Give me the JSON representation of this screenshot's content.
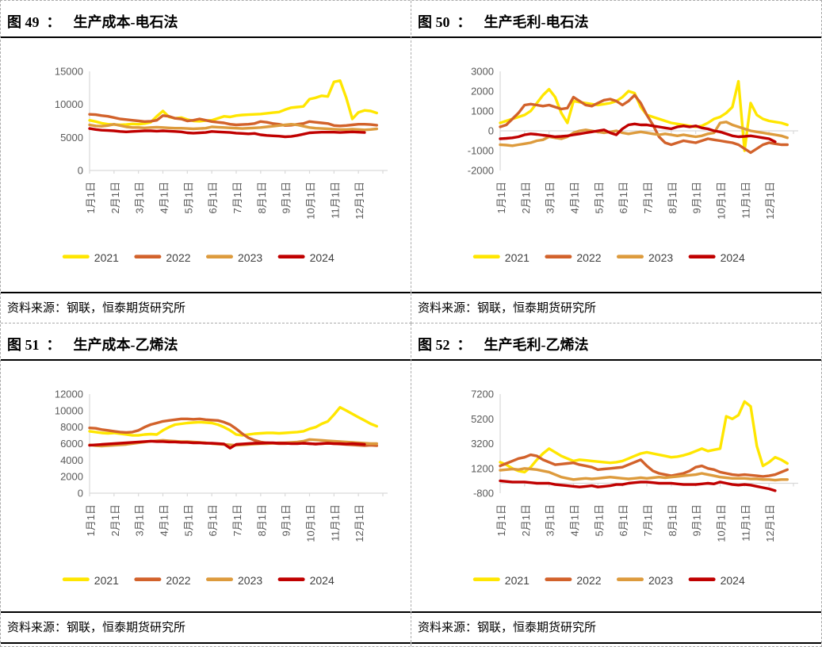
{
  "chart_data": [
    {
      "type": "line",
      "figure_label": "图 49",
      "colon": "：",
      "title": "生产成本-电石法",
      "source": "资料来源：钢联，恒泰期货研究所",
      "ylim": [
        0,
        15000
      ],
      "y_ticks": [
        0,
        5000,
        10000,
        15000
      ],
      "x_labels": [
        "1月1日",
        "2月1日",
        "3月1日",
        "4月1日",
        "5月1日",
        "6月1日",
        "7月1日",
        "8月1日",
        "9月1日",
        "10月1日",
        "11月1日",
        "12月1日"
      ],
      "grid": false,
      "legend_position": "bottom",
      "axis_color": "#D9D9D9",
      "points_per_year": 48,
      "series": [
        {
          "name": "2021",
          "color": "#FFE600",
          "values": [
            7600,
            7400,
            7150,
            7000,
            6950,
            6900,
            6950,
            7050,
            7000,
            7100,
            7300,
            8200,
            9000,
            8100,
            7900,
            8000,
            7700,
            7500,
            7450,
            7550,
            7600,
            7900,
            8200,
            8100,
            8300,
            8400,
            8450,
            8500,
            8550,
            8650,
            8750,
            8850,
            9200,
            9500,
            9600,
            9700,
            10800,
            11000,
            11300,
            11200,
            13400,
            13600,
            11000,
            7800,
            8800,
            9100,
            9000,
            8700
          ]
        },
        {
          "name": "2022",
          "color": "#D2622B",
          "values": [
            8500,
            8450,
            8300,
            8200,
            8000,
            7800,
            7700,
            7600,
            7500,
            7400,
            7450,
            7600,
            8300,
            8200,
            7900,
            7800,
            7500,
            7600,
            7800,
            7600,
            7400,
            7300,
            7200,
            7000,
            6900,
            6950,
            7000,
            7100,
            7400,
            7300,
            7100,
            7000,
            6800,
            6850,
            7000,
            7100,
            7400,
            7300,
            7200,
            7100,
            6800,
            6750,
            6800,
            6900,
            7000,
            7000,
            6950,
            6850
          ]
        },
        {
          "name": "2023",
          "color": "#DD9B3D",
          "values": [
            6900,
            6750,
            6700,
            6800,
            7000,
            6800,
            6600,
            6500,
            6500,
            6450,
            6500,
            6550,
            6500,
            6450,
            6400,
            6400,
            6350,
            6300,
            6350,
            6400,
            6600,
            6550,
            6500,
            6450,
            6400,
            6350,
            6400,
            6450,
            6500,
            6600,
            6700,
            6800,
            6900,
            7000,
            6900,
            6700,
            6500,
            6400,
            6350,
            6300,
            6250,
            6200,
            6200,
            6250,
            6200,
            6150,
            6200,
            6300
          ]
        },
        {
          "name": "2024",
          "color": "#C00000",
          "values": [
            6350,
            6200,
            6100,
            6050,
            6000,
            5900,
            5850,
            5900,
            5950,
            6000,
            6000,
            5950,
            6000,
            5950,
            5900,
            5850,
            5700,
            5650,
            5700,
            5750,
            5900,
            5850,
            5800,
            5750,
            5650,
            5600,
            5550,
            5600,
            5400,
            5300,
            5250,
            5200,
            5100,
            5150,
            5300,
            5500,
            5700,
            5750,
            5800,
            5800,
            5800,
            5750,
            5800,
            5850,
            5800,
            5750
          ]
        }
      ]
    },
    {
      "type": "line",
      "figure_label": "图 50",
      "colon": "：",
      "title": "生产毛利-电石法",
      "source": "资料来源：钢联，恒泰期货研究所",
      "ylim": [
        -2000,
        3000
      ],
      "y_ticks": [
        -2000,
        -1000,
        0,
        1000,
        2000,
        3000
      ],
      "x_labels": [
        "1月1日",
        "2月1日",
        "3月1日",
        "4月1日",
        "5月1日",
        "6月1日",
        "7月1日",
        "8月1日",
        "9月1日",
        "10月1日",
        "11月1日",
        "12月1日"
      ],
      "grid": false,
      "legend_position": "bottom",
      "axis_color": "#D9D9D9",
      "points_per_year": 48,
      "series": [
        {
          "name": "2021",
          "color": "#FFE600",
          "values": [
            400,
            500,
            600,
            700,
            800,
            1000,
            1400,
            1800,
            2100,
            1700,
            900,
            400,
            1500,
            1450,
            1400,
            1350,
            1300,
            1350,
            1400,
            1500,
            1700,
            2000,
            1900,
            1200,
            800,
            700,
            600,
            500,
            400,
            350,
            300,
            250,
            200,
            250,
            400,
            600,
            700,
            900,
            1200,
            2500,
            -1000,
            1400,
            800,
            600,
            500,
            450,
            400,
            300
          ]
        },
        {
          "name": "2022",
          "color": "#D2622B",
          "values": [
            200,
            300,
            600,
            900,
            1300,
            1350,
            1300,
            1250,
            1300,
            1200,
            1100,
            1150,
            1700,
            1500,
            1300,
            1250,
            1400,
            1550,
            1600,
            1500,
            1300,
            1500,
            1800,
            1400,
            800,
            300,
            -300,
            -600,
            -700,
            -600,
            -500,
            -550,
            -600,
            -500,
            -400,
            -450,
            -500,
            -550,
            -600,
            -700,
            -900,
            -1100,
            -900,
            -700,
            -600,
            -650,
            -700,
            -700
          ]
        },
        {
          "name": "2023",
          "color": "#DD9B3D",
          "values": [
            -700,
            -720,
            -750,
            -700,
            -650,
            -600,
            -500,
            -450,
            -300,
            -350,
            -400,
            -300,
            -100,
            0,
            50,
            0,
            -50,
            -100,
            -50,
            0,
            -100,
            -150,
            -100,
            -50,
            -100,
            -150,
            -200,
            -150,
            -200,
            -250,
            -200,
            -250,
            -300,
            -250,
            -150,
            -100,
            400,
            450,
            300,
            200,
            100,
            0,
            -50,
            -100,
            -150,
            -200,
            -250,
            -350
          ]
        },
        {
          "name": "2024",
          "color": "#C00000",
          "values": [
            -400,
            -380,
            -350,
            -300,
            -200,
            -150,
            -180,
            -220,
            -250,
            -300,
            -280,
            -250,
            -200,
            -150,
            -100,
            -50,
            0,
            50,
            -100,
            -200,
            100,
            300,
            350,
            300,
            300,
            250,
            200,
            150,
            100,
            200,
            250,
            200,
            250,
            150,
            100,
            0,
            -50,
            -150,
            -250,
            -300,
            -280,
            -250,
            -300,
            -350,
            -400,
            -550
          ]
        }
      ]
    },
    {
      "type": "line",
      "figure_label": "图 51",
      "colon": "：",
      "title": "生产成本-乙烯法",
      "source": "资料来源：钢联，恒泰期货研究所",
      "ylim": [
        0,
        12000
      ],
      "y_ticks": [
        0,
        2000,
        4000,
        6000,
        8000,
        10000,
        12000
      ],
      "x_labels": [
        "1月1日",
        "2月1日",
        "3月1日",
        "4月1日",
        "5月1日",
        "6月1日",
        "7月1日",
        "8月1日",
        "9月1日",
        "10月1日",
        "11月1日",
        "12月1日"
      ],
      "grid": false,
      "legend_position": "bottom",
      "axis_color": "#D9D9D9",
      "points_per_year": 48,
      "series": [
        {
          "name": "2021",
          "color": "#FFE600",
          "values": [
            7500,
            7400,
            7300,
            7250,
            7300,
            7200,
            7100,
            7000,
            7000,
            7100,
            7150,
            7100,
            7600,
            8000,
            8300,
            8400,
            8500,
            8550,
            8600,
            8550,
            8500,
            8300,
            8000,
            7600,
            7100,
            7000,
            7100,
            7200,
            7250,
            7300,
            7300,
            7250,
            7300,
            7350,
            7400,
            7500,
            7800,
            8000,
            8400,
            8700,
            9500,
            10400,
            10000,
            9600,
            9200,
            8800,
            8400,
            8100
          ]
        },
        {
          "name": "2022",
          "color": "#D2622B",
          "values": [
            7900,
            7850,
            7700,
            7600,
            7500,
            7400,
            7350,
            7400,
            7600,
            8000,
            8300,
            8500,
            8700,
            8800,
            8900,
            9000,
            9000,
            8950,
            9000,
            8900,
            8850,
            8800,
            8600,
            8300,
            7800,
            7200,
            6700,
            6400,
            6200,
            6100,
            6050,
            6000,
            6000,
            6050,
            6100,
            6050,
            6000,
            5950,
            6000,
            6050,
            6000,
            5950,
            5900,
            5850,
            5800,
            5750,
            5800,
            5750
          ]
        },
        {
          "name": "2023",
          "color": "#DD9B3D",
          "values": [
            5850,
            5750,
            5700,
            5750,
            5800,
            5850,
            5900,
            6000,
            6100,
            6200,
            6300,
            6350,
            6400,
            6350,
            6300,
            6250,
            6250,
            6200,
            6150,
            6100,
            6000,
            5950,
            5900,
            5850,
            5800,
            5850,
            5900,
            5950,
            6000,
            6000,
            6050,
            6100,
            6100,
            6150,
            6200,
            6300,
            6500,
            6450,
            6400,
            6350,
            6300,
            6250,
            6200,
            6150,
            6100,
            6050,
            6000,
            6000
          ]
        },
        {
          "name": "2024",
          "color": "#C00000",
          "values": [
            5800,
            5850,
            5900,
            5950,
            6000,
            6050,
            6100,
            6150,
            6200,
            6250,
            6300,
            6250,
            6250,
            6200,
            6200,
            6150,
            6150,
            6100,
            6100,
            6050,
            6050,
            6000,
            5950,
            5450,
            5900,
            5950,
            6000,
            6050,
            6050,
            6100,
            6100,
            6050,
            6050,
            6000,
            6000,
            6050,
            6000,
            5950,
            6000,
            6050,
            6000,
            6000,
            5950,
            6000,
            5950,
            5900
          ]
        }
      ]
    },
    {
      "type": "line",
      "figure_label": "图 52",
      "colon": "：",
      "title": "生产毛利-乙烯法",
      "source": "资料来源：钢联，恒泰期货研究所",
      "ylim": [
        -800,
        7200
      ],
      "y_ticks": [
        -800,
        1200,
        3200,
        5200,
        7200
      ],
      "x_labels": [
        "1月1日",
        "2月1日",
        "3月1日",
        "4月1日",
        "5月1日",
        "6月1日",
        "7月1日",
        "8月1日",
        "9月1日",
        "10月1日",
        "11月1日",
        "12月1日"
      ],
      "grid": false,
      "legend_position": "bottom",
      "axis_color": "#D9D9D9",
      "points_per_year": 48,
      "series": [
        {
          "name": "2021",
          "color": "#FFE600",
          "values": [
            1700,
            1500,
            1200,
            1000,
            900,
            1300,
            1900,
            2400,
            2800,
            2500,
            2200,
            2000,
            1800,
            1900,
            1850,
            1800,
            1750,
            1700,
            1650,
            1700,
            1800,
            2000,
            2200,
            2400,
            2500,
            2400,
            2300,
            2200,
            2100,
            2150,
            2250,
            2400,
            2600,
            2800,
            2600,
            2700,
            2800,
            5400,
            5200,
            5500,
            6600,
            6200,
            3000,
            1400,
            1700,
            2100,
            1900,
            1600
          ]
        },
        {
          "name": "2022",
          "color": "#D2622B",
          "values": [
            1400,
            1600,
            1800,
            2000,
            2100,
            2300,
            2200,
            1900,
            1700,
            1500,
            1550,
            1600,
            1650,
            1500,
            1400,
            1300,
            1100,
            1150,
            1200,
            1250,
            1300,
            1500,
            1700,
            1900,
            1400,
            1000,
            800,
            700,
            600,
            700,
            800,
            1000,
            1300,
            1400,
            1200,
            1100,
            900,
            800,
            700,
            650,
            700,
            650,
            600,
            550,
            600,
            700,
            900,
            1100
          ]
        },
        {
          "name": "2023",
          "color": "#DD9B3D",
          "values": [
            1050,
            1100,
            1150,
            1100,
            1200,
            1150,
            1100,
            1000,
            900,
            700,
            500,
            400,
            300,
            350,
            400,
            350,
            400,
            450,
            500,
            450,
            400,
            350,
            400,
            450,
            400,
            450,
            500,
            450,
            500,
            550,
            600,
            650,
            700,
            800,
            700,
            600,
            500,
            450,
            400,
            400,
            400,
            350,
            350,
            300,
            300,
            250,
            300,
            300
          ]
        },
        {
          "name": "2024",
          "color": "#C00000",
          "values": [
            200,
            150,
            100,
            100,
            100,
            50,
            0,
            0,
            0,
            -100,
            -150,
            -200,
            -250,
            -300,
            -250,
            -200,
            -300,
            -250,
            -200,
            -100,
            -100,
            0,
            50,
            100,
            100,
            50,
            0,
            0,
            0,
            -50,
            -100,
            -100,
            -100,
            -50,
            0,
            -50,
            100,
            0,
            -100,
            -150,
            -100,
            -150,
            -250,
            -350,
            -450,
            -600
          ]
        }
      ]
    }
  ]
}
